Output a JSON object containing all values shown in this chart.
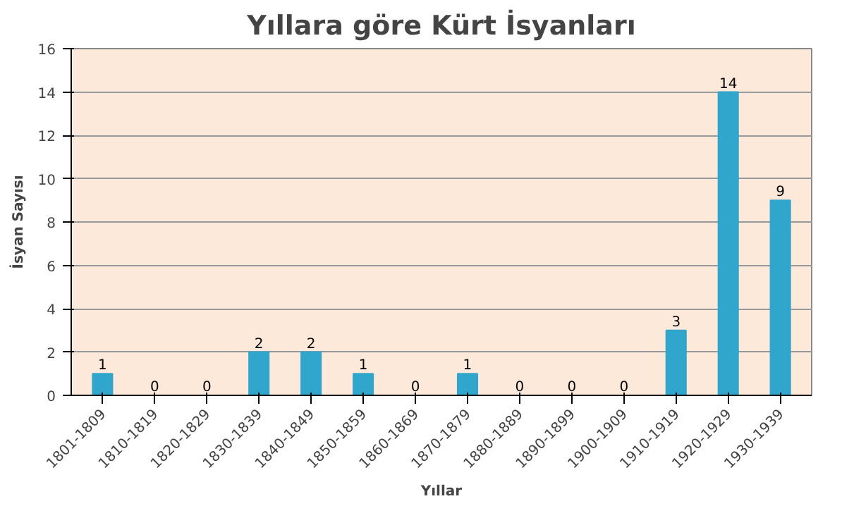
{
  "chart_data": {
    "type": "bar",
    "title": "Yıllara göre Kürt İsyanları",
    "xlabel": "Yıllar",
    "ylabel": "İsyan Sayısı",
    "categories": [
      "1801-1809",
      "1810-1819",
      "1820-1829",
      "1830-1839",
      "1840-1849",
      "1850-1859",
      "1860-1869",
      "1870-1879",
      "1880-1889",
      "1890-1899",
      "1900-1909",
      "1910-1919",
      "1920-1929",
      "1930-1939"
    ],
    "values": [
      1,
      0,
      0,
      2,
      2,
      1,
      0,
      1,
      0,
      0,
      0,
      3,
      14,
      9
    ],
    "color": "#31a6cc",
    "ylim": [
      0,
      16
    ],
    "yticks": [
      0,
      2,
      4,
      6,
      8,
      10,
      12,
      14,
      16
    ],
    "grid": "y",
    "data_labels": true
  }
}
